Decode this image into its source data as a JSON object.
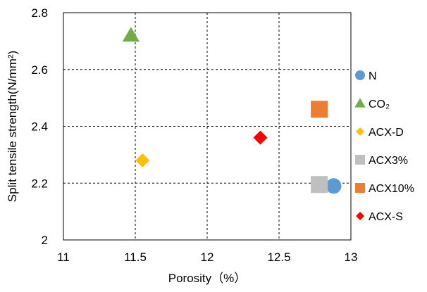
{
  "chart_data": {
    "type": "scatter",
    "title": "",
    "xlabel": "Porosity（%）",
    "ylabel": "Split tensile strength(N/mm²)",
    "xlim": [
      11,
      13
    ],
    "ylim": [
      2,
      2.8
    ],
    "x_ticks": [
      11,
      11.5,
      12,
      12.5,
      13
    ],
    "x_tick_labels": [
      "11",
      "11.5",
      "12",
      "12.5",
      "13"
    ],
    "y_ticks": [
      2,
      2.2,
      2.4,
      2.6,
      2.8
    ],
    "y_tick_labels": [
      "2",
      "2.2",
      "2.4",
      "2.6",
      "2.8"
    ],
    "grid": "dashed",
    "legend_position": "right",
    "series": [
      {
        "name": "N",
        "marker": "circle",
        "color": "#5b9bd5",
        "points": [
          {
            "x": 12.88,
            "y": 2.19
          }
        ]
      },
      {
        "name": "CO₂",
        "marker": "triangle",
        "color": "#70ad47",
        "points": [
          {
            "x": 11.47,
            "y": 2.72
          }
        ]
      },
      {
        "name": "ACX-D",
        "marker": "diamond",
        "color": "#ffc000",
        "points": [
          {
            "x": 11.55,
            "y": 2.28
          }
        ]
      },
      {
        "name": "ACX3%",
        "marker": "square",
        "color": "#bfbfbf",
        "points": [
          {
            "x": 12.78,
            "y": 2.195
          }
        ]
      },
      {
        "name": "ACX10%",
        "marker": "square",
        "color": "#ed7d31",
        "points": [
          {
            "x": 12.78,
            "y": 2.46
          }
        ]
      },
      {
        "name": "ACX-S",
        "marker": "diamond",
        "color": "#ff0000",
        "points": [
          {
            "x": 12.37,
            "y": 2.36
          }
        ]
      }
    ]
  }
}
